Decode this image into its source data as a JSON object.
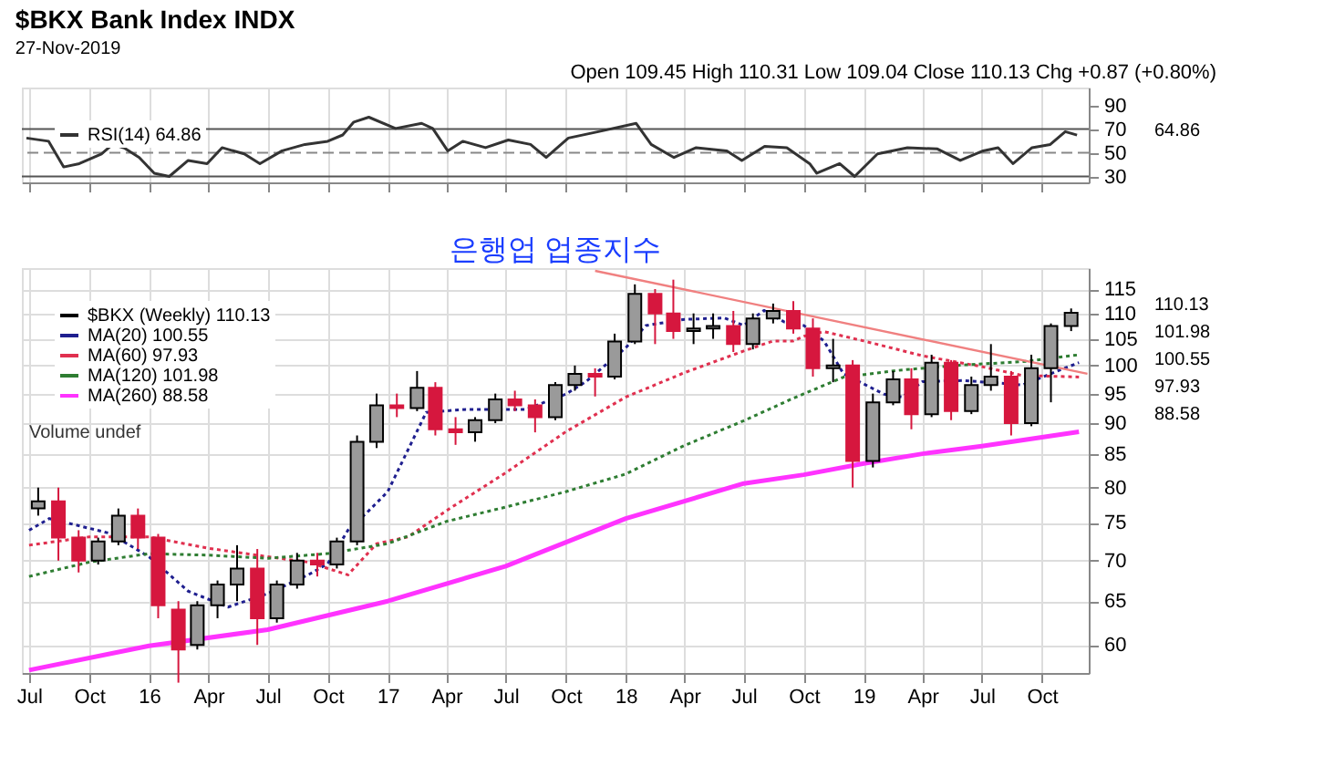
{
  "chart_data": [
    {
      "type": "line",
      "title": "$BKX Bank Index INDX",
      "subtitle": "27-Nov-2019",
      "annotations": [
        "Open 109.45 High 110.31 Low 109.04 Close 110.13 Chg +0.87 (+0.80%)",
        "64.86"
      ],
      "xlim": [
        "2015-06-20",
        "2019-12-12"
      ],
      "ylim": [
        25,
        105
      ],
      "yticks": [
        30,
        50,
        70,
        90
      ],
      "xticks": [
        {
          "value": "2015-07-01",
          "label": null
        },
        {
          "value": "2015-10-01",
          "label": null
        },
        {
          "value": "2016-01-01",
          "label": null
        },
        {
          "value": "2016-04-01",
          "label": null
        },
        {
          "value": "2016-07-01",
          "label": null
        },
        {
          "value": "2016-10-01",
          "label": null
        },
        {
          "value": "2017-01-01",
          "label": null
        },
        {
          "value": "2017-04-01",
          "label": null
        },
        {
          "value": "2017-07-01",
          "label": null
        },
        {
          "value": "2017-10-01",
          "label": null
        },
        {
          "value": "2018-01-01",
          "label": null
        },
        {
          "value": "2018-04-01",
          "label": null
        },
        {
          "value": "2018-07-01",
          "label": null
        },
        {
          "value": "2018-10-01",
          "label": null
        },
        {
          "value": "2019-01-01",
          "label": null
        },
        {
          "value": "2019-04-01",
          "label": null
        },
        {
          "value": "2019-07-01",
          "label": null
        },
        {
          "value": "2019-10-01",
          "label": null
        }
      ],
      "tick_labels": "y",
      "grid": "x",
      "legend": "top left",
      "ref_lines": [
        {
          "axis": "y",
          "value": 70,
          "color": "#555555"
        },
        {
          "axis": "y",
          "value": 30,
          "color": "#555555"
        },
        {
          "axis": "y",
          "value": 50,
          "color": "#888888",
          "line_style": "dashed"
        }
      ],
      "series": [
        {
          "name": "RSI(14) 64.86",
          "color": "#333333",
          "x": [
            "2015-06-27",
            "2015-07-31",
            "2015-08-23",
            "2015-09-16",
            "2015-10-20",
            "2015-11-06",
            "2015-11-24",
            "2015-12-17",
            "2016-01-09",
            "2016-02-01",
            "2016-03-01",
            "2016-03-30",
            "2016-04-22",
            "2016-05-26",
            "2016-06-19",
            "2016-07-23",
            "2016-08-27",
            "2016-10-01",
            "2016-10-24",
            "2016-11-10",
            "2016-12-03",
            "2017-01-13",
            "2017-02-22",
            "2017-03-11",
            "2017-04-03",
            "2017-04-26",
            "2017-05-31",
            "2017-07-05",
            "2017-08-08",
            "2017-09-01",
            "2017-10-05",
            "2017-11-20",
            "2018-01-17",
            "2018-02-09",
            "2018-03-16",
            "2018-04-19",
            "2018-06-05",
            "2018-06-28",
            "2018-08-02",
            "2018-09-05",
            "2018-10-10",
            "2018-10-21",
            "2018-11-25",
            "2018-12-18",
            "2019-01-22",
            "2019-03-09",
            "2019-04-24",
            "2019-05-29",
            "2019-07-03",
            "2019-07-26",
            "2019-08-18",
            "2019-09-16",
            "2019-10-14",
            "2019-11-06",
            "2019-11-24"
          ],
          "values": [
            62.4,
            59.7,
            38,
            40.8,
            49,
            57,
            54,
            46,
            32.7,
            30,
            43.5,
            40.8,
            54.3,
            49,
            40.8,
            51.6,
            57,
            59.7,
            65,
            75.9,
            80,
            70.5,
            74.8,
            70.5,
            51.6,
            59.7,
            54.3,
            60.8,
            57,
            46,
            62.4,
            67.8,
            74.8,
            57,
            46,
            54.3,
            51.6,
            43.5,
            55.4,
            54.3,
            40.8,
            32.7,
            40.8,
            30,
            49,
            54.3,
            53.2,
            43.5,
            51.6,
            54.3,
            40.8,
            54.3,
            57,
            67.8,
            64.86
          ]
        }
      ]
    },
    {
      "type": "candlestick",
      "annotations": [
        "은행업 업종지수",
        "Volume undef",
        "110.13",
        "101.98",
        "100.55",
        "97.93",
        "88.58"
      ],
      "xlim": [
        "2015-06-20",
        "2019-12-12"
      ],
      "ylim": [
        57,
        119.5
      ],
      "log": true,
      "yticks": [
        60,
        65,
        70,
        75,
        80,
        85,
        90,
        95,
        100,
        105,
        110,
        115
      ],
      "xticks": [
        {
          "value": "2015-07-01",
          "label": "Jul"
        },
        {
          "value": "2015-10-01",
          "label": "Oct"
        },
        {
          "value": "2016-01-01",
          "label": "16"
        },
        {
          "value": "2016-04-01",
          "label": "Apr"
        },
        {
          "value": "2016-07-01",
          "label": "Jul"
        },
        {
          "value": "2016-10-01",
          "label": "Oct"
        },
        {
          "value": "2017-01-01",
          "label": "17"
        },
        {
          "value": "2017-04-01",
          "label": "Apr"
        },
        {
          "value": "2017-07-01",
          "label": "Jul"
        },
        {
          "value": "2017-10-01",
          "label": "Oct"
        },
        {
          "value": "2018-01-01",
          "label": "18"
        },
        {
          "value": "2018-04-01",
          "label": "Apr"
        },
        {
          "value": "2018-07-01",
          "label": "Jul"
        },
        {
          "value": "2018-10-01",
          "label": "Oct"
        },
        {
          "value": "2019-01-01",
          "label": "19"
        },
        {
          "value": "2019-04-01",
          "label": "Apr"
        },
        {
          "value": "2019-07-01",
          "label": "Jul"
        },
        {
          "value": "2019-10-01",
          "label": "Oct"
        }
      ],
      "grid": true,
      "legend": "top left",
      "series": [
        {
          "type": "candlestick",
          "name": "$BKX (Weekly) 110.13",
          "color": "#000000",
          "colors": [
            "#9a9a9a",
            "#d6173e",
            "#d6173e",
            "#9a9a9a",
            "#9a9a9a",
            "#d6173e",
            "#d6173e",
            "#d6173e",
            "#9a9a9a",
            "#9a9a9a",
            "#9a9a9a",
            "#d6173e",
            "#9a9a9a",
            "#9a9a9a",
            "#d6173e",
            "#9a9a9a",
            "#9a9a9a",
            "#9a9a9a",
            "#d6173e",
            "#9a9a9a",
            "#d6173e",
            "#d6173e",
            "#9a9a9a",
            "#9a9a9a",
            "#d6173e",
            "#d6173e",
            "#9a9a9a",
            "#9a9a9a",
            "#d6173e",
            "#9a9a9a",
            "#9a9a9a",
            "#d6173e",
            "#d6173e",
            "#9a9a9a",
            "#9a9a9a",
            "#d6173e",
            "#9a9a9a",
            "#9a9a9a",
            "#d6173e",
            "#d6173e",
            "#9a9a9a",
            "#d6173e",
            "#9a9a9a",
            "#9a9a9a",
            "#d6173e",
            "#9a9a9a",
            "#d6173e",
            "#9a9a9a",
            "#9a9a9a",
            "#d6173e",
            "#9a9a9a",
            "#9a9a9a",
            "#9a9a9a"
          ],
          "x": [
            "2015-07-15",
            "2015-08-15",
            "2015-09-15",
            "2015-10-15",
            "2015-11-15",
            "2015-12-15",
            "2016-01-15",
            "2016-02-15",
            "2016-03-15",
            "2016-04-15",
            "2016-05-15",
            "2016-06-15",
            "2016-07-15",
            "2016-08-15",
            "2016-09-15",
            "2016-10-15",
            "2016-11-15",
            "2016-12-15",
            "2017-01-15",
            "2017-02-15",
            "2017-03-15",
            "2017-04-15",
            "2017-05-15",
            "2017-06-15",
            "2017-07-15",
            "2017-08-15",
            "2017-09-15",
            "2017-10-15",
            "2017-11-15",
            "2017-12-15",
            "2018-01-15",
            "2018-02-15",
            "2018-03-15",
            "2018-04-15",
            "2018-05-15",
            "2018-06-15",
            "2018-07-15",
            "2018-08-15",
            "2018-09-15",
            "2018-10-15",
            "2018-11-15",
            "2018-12-15",
            "2019-01-15",
            "2019-02-15",
            "2019-03-15",
            "2019-04-15",
            "2019-05-15",
            "2019-06-15",
            "2019-07-15",
            "2019-08-15",
            "2019-09-15",
            "2019-10-15",
            "2019-11-15"
          ],
          "ohlc": [
            [
              77,
              80,
              76,
              78
            ],
            [
              78,
              80,
              70,
              73
            ],
            [
              73,
              74,
              68.5,
              70
            ],
            [
              70,
              73,
              69.5,
              72.5
            ],
            [
              72.5,
              77,
              72,
              76
            ],
            [
              76,
              77,
              71.5,
              73
            ],
            [
              73,
              73.5,
              63,
              64.5
            ],
            [
              64,
              65,
              56,
              59.5
            ],
            [
              60,
              65,
              59.5,
              64.5
            ],
            [
              64.5,
              67.5,
              63,
              67
            ],
            [
              67,
              72,
              65,
              69
            ],
            [
              69,
              71.5,
              60,
              63
            ],
            [
              63,
              67.5,
              62.5,
              67
            ],
            [
              67,
              71,
              66.5,
              70
            ],
            [
              70,
              71,
              68,
              69.5
            ],
            [
              69.5,
              73,
              69,
              72.5
            ],
            [
              72.5,
              88,
              72,
              87
            ],
            [
              87,
              95,
              86,
              93
            ],
            [
              93,
              95,
              91,
              92.5
            ],
            [
              92.5,
              99,
              92,
              96
            ],
            [
              96,
              97,
              88,
              89
            ],
            [
              89,
              91,
              86.5,
              88.5
            ],
            [
              88.5,
              91,
              87,
              90.5
            ],
            [
              90.5,
              95,
              90,
              94
            ],
            [
              94,
              95.5,
              92,
              93
            ],
            [
              93,
              94,
              88.5,
              91
            ],
            [
              91,
              97,
              90.5,
              96.5
            ],
            [
              96.5,
              100,
              95.5,
              98.5
            ],
            [
              98.5,
              99.5,
              94.5,
              98
            ],
            [
              98,
              106,
              97.5,
              104.5
            ],
            [
              104.5,
              116,
              104,
              114
            ],
            [
              114,
              115,
              104,
              110
            ],
            [
              110,
              117,
              105,
              106.5
            ],
            [
              106.5,
              110,
              104,
              107
            ],
            [
              107,
              110,
              105,
              107.5
            ],
            [
              107.5,
              110.5,
              102.5,
              104
            ],
            [
              104,
              110,
              103,
              109
            ],
            [
              109,
              112,
              108,
              110.5
            ],
            [
              110.5,
              112.5,
              106,
              107
            ],
            [
              107,
              109,
              98,
              99.5
            ],
            [
              99.5,
              105,
              97,
              100
            ],
            [
              100,
              101,
              80,
              84
            ],
            [
              84,
              95,
              83,
              93.5
            ],
            [
              93.5,
              99,
              93,
              97.5
            ],
            [
              97.5,
              99.5,
              89,
              91.5
            ],
            [
              91.5,
              102,
              91,
              100.5
            ],
            [
              100.5,
              101,
              90.5,
              92
            ],
            [
              92,
              98,
              91.5,
              96.5
            ],
            [
              96.5,
              104,
              95.5,
              98
            ],
            [
              98,
              99,
              88,
              90
            ],
            [
              90,
              102,
              89.5,
              99.5
            ],
            [
              99.5,
              108,
              93.5,
              107.5
            ],
            [
              107.5,
              111,
              106.5,
              110.13
            ]
          ]
        },
        {
          "type": "line",
          "name": "MA(20) 100.55",
          "color": "#1f1f8f",
          "line_style": "dotted",
          "x": [
            "2015-07-01",
            "2015-08-01",
            "2015-11-01",
            "2016-01-01",
            "2016-03-01",
            "2016-05-01",
            "2016-07-01",
            "2016-09-01",
            "2016-10-01",
            "2016-11-01",
            "2016-12-01",
            "2017-01-01",
            "2017-03-01",
            "2017-05-01",
            "2017-07-01",
            "2017-08-01",
            "2017-10-01",
            "2017-11-01",
            "2018-01-01",
            "2018-02-01",
            "2018-04-01",
            "2018-06-01",
            "2018-07-01",
            "2018-08-01",
            "2018-09-01",
            "2018-10-01",
            "2018-11-01",
            "2018-12-01",
            "2019-02-01",
            "2019-03-01",
            "2019-04-01",
            "2019-06-01",
            "2019-08-01",
            "2019-09-01",
            "2019-11-27"
          ],
          "values": [
            74,
            75.6,
            73.6,
            70.5,
            66.2,
            64.3,
            65.9,
            68.2,
            69.6,
            74,
            76.5,
            79.4,
            91.8,
            92.3,
            92.3,
            92.3,
            94.9,
            97.1,
            103.3,
            107.6,
            108.8,
            109.1,
            107.6,
            110.6,
            108.3,
            107.6,
            104.6,
            98.5,
            94.9,
            94.4,
            97.1,
            97.3,
            96.8,
            96.5,
            100.55
          ]
        },
        {
          "type": "line",
          "name": "MA(60) 97.93",
          "color": "#e0304f",
          "line_style": "dotted",
          "x": [
            "2015-07-01",
            "2015-10-01",
            "2016-01-01",
            "2016-04-01",
            "2016-07-01",
            "2016-09-01",
            "2016-11-01",
            "2016-12-15",
            "2017-02-01",
            "2017-04-01",
            "2017-07-01",
            "2017-10-01",
            "2018-01-01",
            "2018-04-01",
            "2018-07-01",
            "2018-08-15",
            "2018-09-15",
            "2018-10-01",
            "2018-11-01",
            "2019-01-01",
            "2019-04-01",
            "2019-07-01",
            "2019-09-01",
            "2019-11-27"
          ],
          "values": [
            72,
            73.1,
            73.1,
            71.6,
            70.5,
            69.8,
            68.2,
            72.2,
            73.1,
            76.7,
            82.2,
            88.6,
            94.4,
            98.7,
            102.7,
            104.6,
            104.6,
            105.5,
            106.4,
            104.6,
            101.8,
            99.8,
            98.2,
            97.93
          ]
        },
        {
          "type": "line",
          "name": "MA(120) 101.98",
          "color": "#2e7d32",
          "line_style": "dotted",
          "x": [
            "2015-07-01",
            "2015-10-01",
            "2016-01-01",
            "2016-04-01",
            "2016-07-01",
            "2016-10-01",
            "2017-01-01",
            "2017-04-01",
            "2017-07-01",
            "2017-10-01",
            "2018-01-01",
            "2018-04-01",
            "2018-07-01",
            "2018-09-15",
            "2018-12-01",
            "2019-03-01",
            "2019-06-01",
            "2019-09-01",
            "2019-11-27"
          ],
          "values": [
            68,
            69.8,
            70.9,
            70.7,
            70.3,
            70.9,
            72.2,
            75.2,
            77.2,
            79.4,
            82,
            86.4,
            90.4,
            94.2,
            97.9,
            99.2,
            100.1,
            100.7,
            101.98
          ]
        },
        {
          "type": "line",
          "name": "MA(260) 88.58",
          "color": "#ff33ff",
          "line_style": "solid",
          "x": [
            "2015-07-01",
            "2016-01-01",
            "2016-07-01",
            "2017-01-01",
            "2017-07-01",
            "2018-01-01",
            "2018-07-01",
            "2018-10-01",
            "2019-01-01",
            "2019-04-01",
            "2019-07-01",
            "2019-11-27"
          ],
          "values": [
            57.3,
            59.9,
            61.7,
            65,
            69.3,
            75.6,
            80.6,
            81.9,
            83.6,
            85.1,
            86.3,
            88.58
          ]
        },
        {
          "type": "line",
          "color": "#f08080",
          "line_style": "solid",
          "x": [
            "2017-11-15",
            "2019-12-10"
          ],
          "values": [
            118.9,
            98.5
          ]
        }
      ]
    }
  ]
}
